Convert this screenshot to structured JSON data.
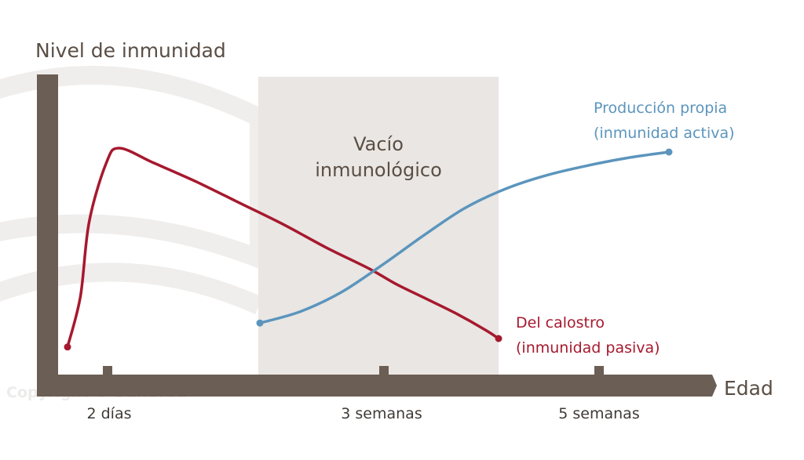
{
  "chart_data": {
    "type": "line",
    "ylabel": "Nivel de inmunidad",
    "xlabel": "Edad",
    "x_ticks": [
      "2 días",
      "3 semanas",
      "5 semanas"
    ],
    "band": {
      "label_line1": "Vacío",
      "label_line2": "inmunológico",
      "color": "#e9e6e3"
    },
    "series": [
      {
        "name_line1": "Del calostro",
        "name_line2": "(inmunidad pasiva)",
        "color": "#a6192e",
        "x": [
          0.0,
          0.03,
          0.05,
          0.09,
          0.12,
          0.2,
          0.3,
          0.4,
          0.5,
          0.6,
          0.7,
          0.76,
          0.83,
          0.9,
          0.97,
          1.0
        ],
        "y": [
          0.06,
          0.3,
          0.65,
          0.93,
          1.0,
          0.93,
          0.84,
          0.74,
          0.64,
          0.53,
          0.43,
          0.36,
          0.29,
          0.22,
          0.14,
          0.1
        ]
      },
      {
        "name_line1": "Producción propia",
        "name_line2": "(inmunidad activa)",
        "color": "#5b95bd",
        "x": [
          0.0,
          0.1,
          0.2,
          0.3,
          0.4,
          0.5,
          0.6,
          0.7,
          0.8,
          0.9,
          1.0
        ],
        "y": [
          0.12,
          0.18,
          0.28,
          0.42,
          0.57,
          0.71,
          0.81,
          0.88,
          0.93,
          0.97,
          1.0
        ]
      }
    ]
  },
  "watermark": "Copyright © DanBred",
  "colors": {
    "axis": "#6b5e55",
    "text": "#5a4e45"
  }
}
